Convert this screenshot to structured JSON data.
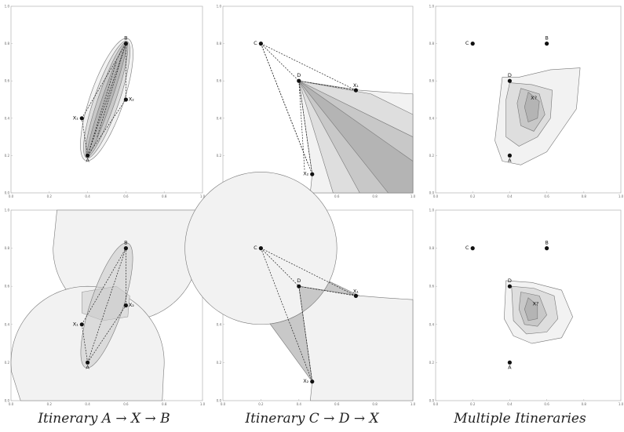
{
  "axis": {
    "ticks": [
      0.0,
      0.2,
      0.4,
      0.6,
      0.8,
      1.0
    ],
    "tick_labels": [
      "0.0",
      "0.2",
      "0.4",
      "0.6",
      "0.8",
      "1.0"
    ],
    "range": [
      0,
      1
    ]
  },
  "captions": [
    "Itinerary A → X → B",
    "Itinerary C → D → X",
    "Multiple Itineraries"
  ],
  "colors": {
    "region_light": "#f2f2f2",
    "region_mid": "#dedede",
    "region_dark": "#c8c8c8",
    "region_darkest": "#b4b4b4",
    "region_stroke": "#777777",
    "point": "#111111",
    "frame": "#bbbbbb"
  },
  "points": {
    "A": [
      0.4,
      0.2
    ],
    "B": [
      0.6,
      0.8
    ],
    "C": [
      0.2,
      0.8
    ],
    "D": [
      0.4,
      0.6
    ],
    "X1": [
      0.37,
      0.4
    ],
    "X2": [
      0.6,
      0.5
    ],
    "X3_CD": [
      0.7,
      0.55
    ],
    "X4_CD": [
      0.47,
      0.1
    ],
    "Xq": [
      0.53,
      0.5
    ]
  },
  "labels": {
    "A": "A",
    "B": "B",
    "C": "C",
    "D": "D",
    "X1": "X₁",
    "X2": "X₂",
    "Xq": "X?"
  }
}
